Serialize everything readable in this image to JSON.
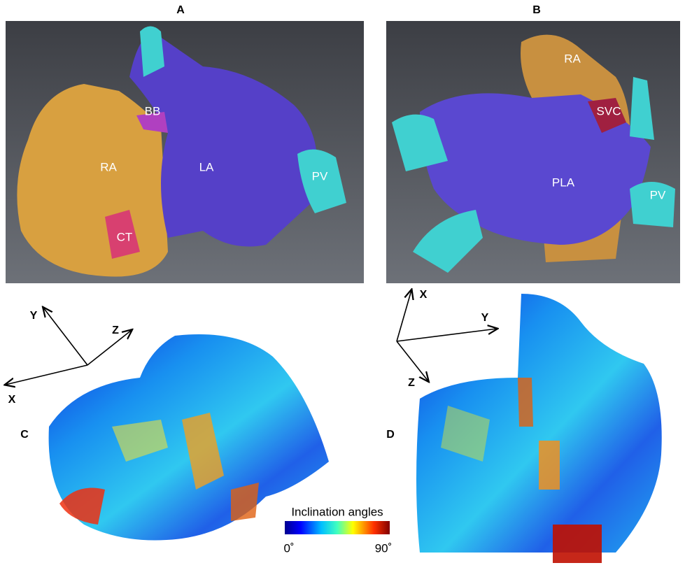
{
  "panels": [
    {
      "label": "A",
      "annotations": [
        "RA",
        "BB",
        "LA",
        "PV",
        "CT"
      ]
    },
    {
      "label": "B",
      "annotations": [
        "RA",
        "SVC",
        "PLA",
        "PV"
      ]
    },
    {
      "label": "C",
      "axes": [
        "Y",
        "Z",
        "X"
      ]
    },
    {
      "label": "D",
      "axes": [
        "X",
        "Y",
        "Z"
      ]
    }
  ],
  "colorbar": {
    "title": "Inclination angles",
    "min_label": "0˚",
    "max_label": "90˚"
  }
}
